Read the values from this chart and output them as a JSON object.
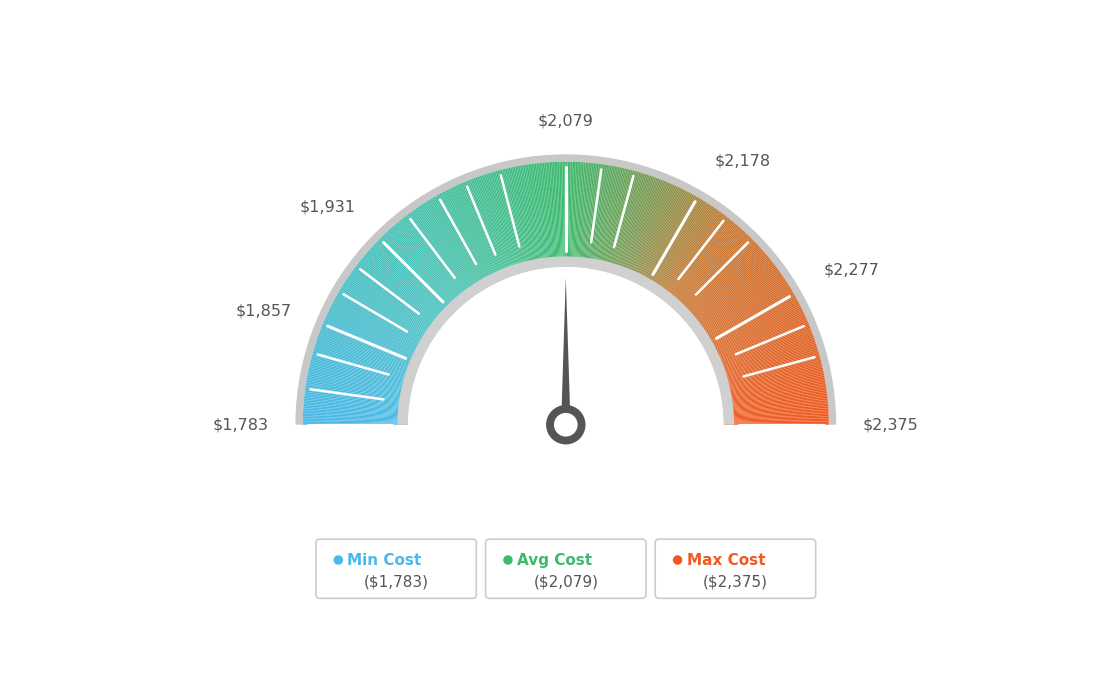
{
  "min_val": 1783,
  "avg_val": 2079,
  "max_val": 2375,
  "tick_labels": [
    "$1,783",
    "$1,857",
    "$1,931",
    "$2,079",
    "$2,178",
    "$2,277",
    "$2,375"
  ],
  "tick_values": [
    1783,
    1857,
    1931,
    2079,
    2178,
    2277,
    2375
  ],
  "all_tick_values": [
    1783,
    1809,
    1835,
    1857,
    1883,
    1905,
    1931,
    1957,
    1983,
    2005,
    2031,
    2079,
    2105,
    2129,
    2178,
    2203,
    2227,
    2277,
    2301,
    2325,
    2375
  ],
  "legend_items": [
    {
      "label": "Min Cost",
      "value": "($1,783)",
      "color": "#4ab8e8"
    },
    {
      "label": "Avg Cost",
      "value": "($2,079)",
      "color": "#3dba6e"
    },
    {
      "label": "Max Cost",
      "value": "($2,375)",
      "color": "#f05a22"
    }
  ],
  "background_color": "#ffffff",
  "needle_value": 2079,
  "color_stops": [
    [
      0.0,
      [
        74,
        184,
        232
      ]
    ],
    [
      0.28,
      [
        72,
        194,
        180
      ]
    ],
    [
      0.5,
      [
        61,
        186,
        110
      ]
    ],
    [
      0.62,
      [
        130,
        150,
        80
      ]
    ],
    [
      0.72,
      [
        200,
        120,
        50
      ]
    ],
    [
      1.0,
      [
        240,
        90,
        34
      ]
    ]
  ]
}
